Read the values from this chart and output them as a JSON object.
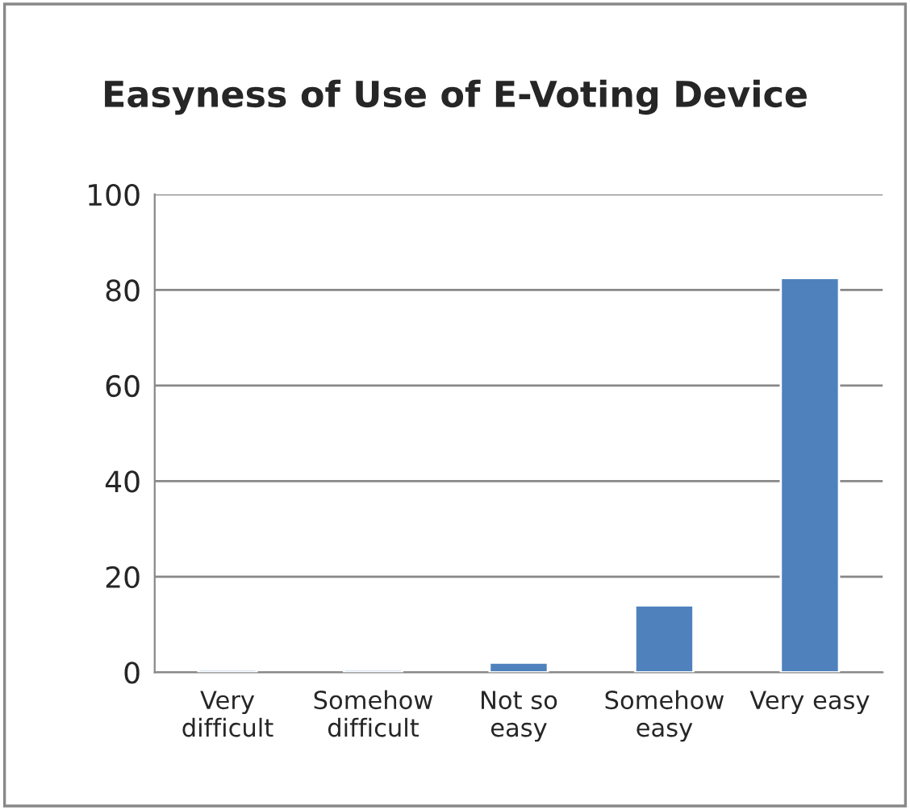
{
  "chart_data": {
    "type": "bar",
    "title": "Easyness of Use of E-Voting Device",
    "categories": [
      "Very\ndifficult",
      "Somehow\ndifficult",
      "Not so\neasy",
      "Somehow\neasy",
      "Very easy"
    ],
    "values": [
      0.5,
      0.5,
      2,
      14,
      82.5
    ],
    "color": "#4f81bd",
    "ylim": [
      0,
      100
    ],
    "yticks": [
      0,
      20,
      40,
      60,
      80,
      100
    ],
    "grid": "y"
  }
}
